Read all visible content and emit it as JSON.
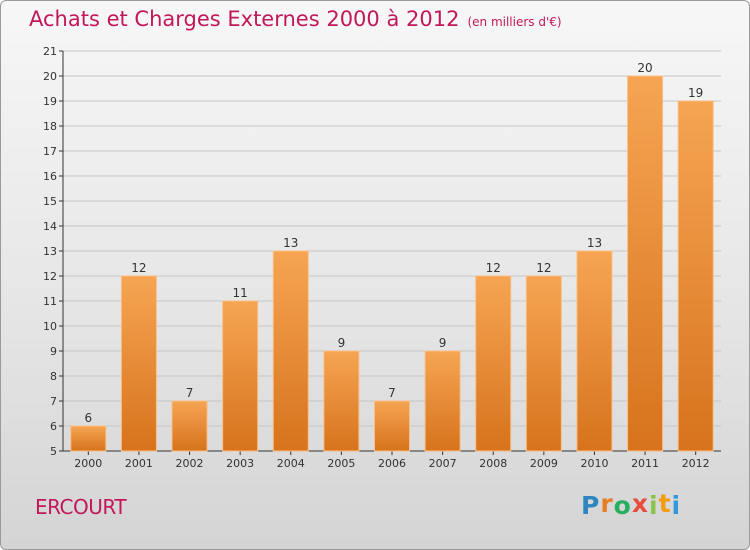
{
  "header": {
    "title": "Achats et Charges Externes 2000 à 2012",
    "subtitle": "(en milliers d'€)"
  },
  "commune": "ERCOURT",
  "logo": {
    "text": "Proxiti",
    "letter_colors": [
      "#2e86c1",
      "#e67e22",
      "#27ae60",
      "#e74c3c",
      "#8bc34a",
      "#f39c12",
      "#3498db"
    ]
  },
  "colors": {
    "bar_top": "#f6a553",
    "bar_bottom": "#d7731c",
    "bar_edge": "#f9bf84",
    "title": "#c2185b",
    "grid": "#c6c6c6"
  },
  "chart_data": {
    "type": "bar",
    "title": "Achats et Charges Externes 2000 à 2012",
    "subtitle": "(en milliers d'€)",
    "categories": [
      "2000",
      "2001",
      "2002",
      "2003",
      "2004",
      "2005",
      "2006",
      "2007",
      "2008",
      "2009",
      "2010",
      "2011",
      "2012"
    ],
    "values": [
      6,
      12,
      7,
      11,
      13,
      9,
      7,
      9,
      12,
      12,
      13,
      20,
      19
    ],
    "ylim": [
      5,
      21
    ],
    "yticks": [
      5,
      6,
      7,
      8,
      9,
      10,
      11,
      12,
      13,
      14,
      15,
      16,
      17,
      18,
      19,
      20,
      21
    ],
    "grid": true,
    "data_labels": true
  }
}
